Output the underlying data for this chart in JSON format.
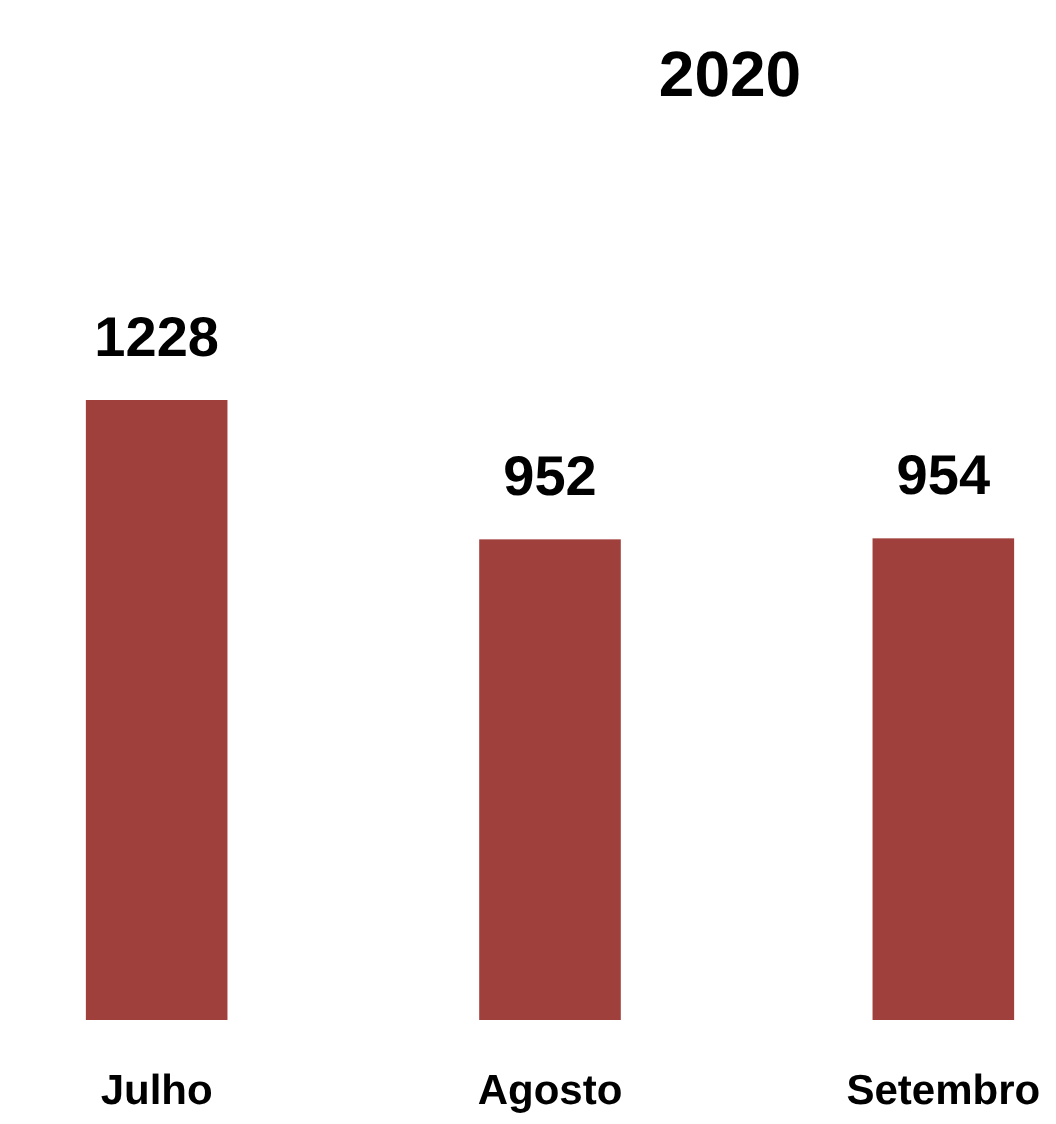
{
  "chart_data": {
    "type": "bar",
    "title": "2020",
    "categories": [
      "Julho",
      "Agosto",
      "Setembro"
    ],
    "values": [
      1228,
      952,
      954
    ],
    "color": "#a0403d",
    "data_labels": true
  }
}
